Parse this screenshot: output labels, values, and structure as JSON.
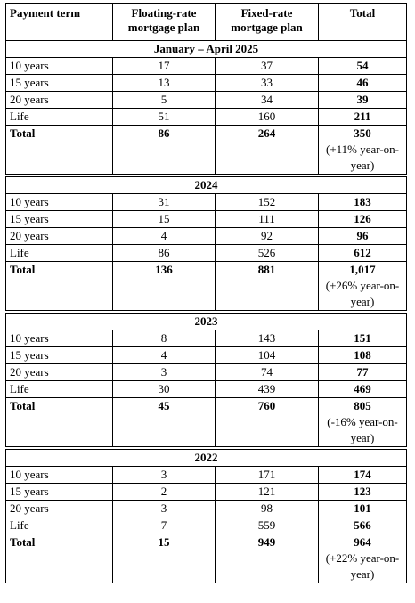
{
  "table": {
    "header": [
      "Payment term",
      "Floating-rate mortgage plan",
      "Fixed-rate mortgage plan",
      "Total"
    ],
    "sections": [
      {
        "title": "January – April 2025",
        "rows": [
          [
            "10 years",
            "17",
            "37",
            "54"
          ],
          [
            "15 years",
            "13",
            "33",
            "46"
          ],
          [
            "20 years",
            "5",
            "34",
            "39"
          ],
          [
            "Life",
            "51",
            "160",
            "211"
          ]
        ],
        "total": [
          "Total",
          "86",
          "264",
          "350"
        ],
        "change": "(+11% year-on-year)"
      },
      {
        "title": "2024",
        "rows": [
          [
            "10 years",
            "31",
            "152",
            "183"
          ],
          [
            "15 years",
            "15",
            "111",
            "126"
          ],
          [
            "20 years",
            "4",
            "92",
            "96"
          ],
          [
            "Life",
            "86",
            "526",
            "612"
          ]
        ],
        "total": [
          "Total",
          "136",
          "881",
          "1,017"
        ],
        "change": "(+26% year-on-year)"
      },
      {
        "title": "2023",
        "rows": [
          [
            "10 years",
            "8",
            "143",
            "151"
          ],
          [
            "15 years",
            "4",
            "104",
            "108"
          ],
          [
            "20 years",
            "3",
            "74",
            "77"
          ],
          [
            "Life",
            "30",
            "439",
            "469"
          ]
        ],
        "total": [
          "Total",
          "45",
          "760",
          "805"
        ],
        "change": "(-16% year-on-year)"
      },
      {
        "title": "2022",
        "rows": [
          [
            "10 years",
            "3",
            "171",
            "174"
          ],
          [
            "15 years",
            "2",
            "121",
            "123"
          ],
          [
            "20 years",
            "3",
            "98",
            "101"
          ],
          [
            "Life",
            "7",
            "559",
            "566"
          ]
        ],
        "total": [
          "Total",
          "15",
          "949",
          "964"
        ],
        "change": "(+22% year-on-year)"
      }
    ]
  }
}
